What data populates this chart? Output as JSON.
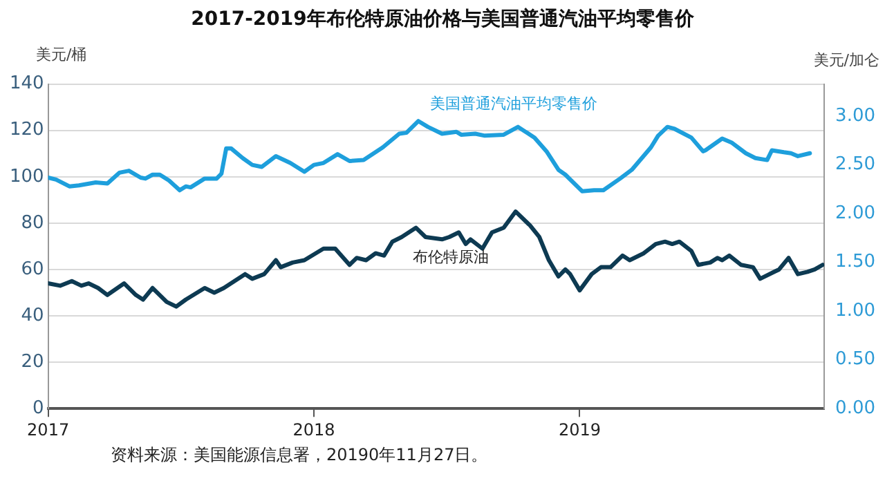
{
  "chart_data": {
    "type": "line",
    "title": "2017-2019年布伦特原油价格与美国普通汽油平均零售价",
    "ylabel": "美元/桶",
    "y2label": "美元/加仑",
    "annotations": [
      "资料来源：美国能源信息署，20190年11月27日。"
    ],
    "xlim": [
      2017,
      2019.92
    ],
    "xticks": [
      2017,
      2018,
      2019
    ],
    "ylim": [
      0,
      140
    ],
    "yticks": [
      0,
      20,
      40,
      60,
      80,
      100,
      120,
      140
    ],
    "y2lim": [
      0,
      3.33
    ],
    "y2ticks": [
      {
        "value": 0,
        "label": "0.00"
      },
      {
        "value": 0.5,
        "label": "0.50"
      },
      {
        "value": 1,
        "label": "1.00"
      },
      {
        "value": 1.5,
        "label": "1.50"
      },
      {
        "value": 2,
        "label": "2.00"
      },
      {
        "value": 2.5,
        "label": "2.50"
      },
      {
        "value": 3,
        "label": "3.00"
      }
    ],
    "grid": "y",
    "legend": false,
    "marker": "none",
    "line_style": "solid",
    "series": [
      {
        "name": "美国普通汽油平均零售价",
        "color": "#1e9fdc",
        "axis": "y2",
        "x": [
          2017.0,
          2017.03,
          2017.08,
          2017.116,
          2017.179,
          2017.223,
          2017.268,
          2017.304,
          2017.348,
          2017.366,
          2017.393,
          2017.42,
          2017.455,
          2017.495,
          2017.518,
          2017.536,
          2017.589,
          2017.634,
          2017.652,
          2017.67,
          2017.688,
          2017.732,
          2017.768,
          2017.804,
          2017.857,
          2017.911,
          2017.964,
          2018.0,
          2018.036,
          2018.089,
          2018.134,
          2018.187,
          2018.259,
          2018.321,
          2018.348,
          2018.393,
          2018.429,
          2018.482,
          2018.536,
          2018.554,
          2018.607,
          2018.643,
          2018.714,
          2018.768,
          2018.83,
          2018.875,
          2018.92,
          2018.946,
          2019.009,
          2019.054,
          2019.089,
          2019.152,
          2019.196,
          2019.268,
          2019.295,
          2019.33,
          2019.357,
          2019.42,
          2019.464,
          2019.473,
          2019.536,
          2019.571,
          2019.625,
          2019.661,
          2019.705,
          2019.723,
          2019.768,
          2019.795,
          2019.821,
          2019.866
        ],
        "values": [
          2.37,
          2.35,
          2.28,
          2.29,
          2.32,
          2.31,
          2.42,
          2.44,
          2.37,
          2.36,
          2.4,
          2.4,
          2.34,
          2.24,
          2.28,
          2.27,
          2.36,
          2.36,
          2.41,
          2.67,
          2.67,
          2.57,
          2.5,
          2.48,
          2.59,
          2.52,
          2.43,
          2.5,
          2.52,
          2.61,
          2.54,
          2.55,
          2.68,
          2.82,
          2.83,
          2.95,
          2.89,
          2.82,
          2.84,
          2.81,
          2.82,
          2.8,
          2.81,
          2.89,
          2.78,
          2.64,
          2.45,
          2.4,
          2.23,
          2.24,
          2.24,
          2.36,
          2.45,
          2.68,
          2.8,
          2.89,
          2.87,
          2.78,
          2.64,
          2.65,
          2.77,
          2.73,
          2.62,
          2.57,
          2.55,
          2.65,
          2.63,
          2.62,
          2.59,
          2.62
        ]
      },
      {
        "name": "布伦特原油",
        "color": "#0d3a52",
        "x": [
          2017.0,
          2017.045,
          2017.089,
          2017.125,
          2017.152,
          2017.188,
          2017.223,
          2017.286,
          2017.33,
          2017.357,
          2017.393,
          2017.446,
          2017.482,
          2017.518,
          2017.589,
          2017.625,
          2017.661,
          2017.741,
          2017.768,
          2017.813,
          2017.857,
          2017.875,
          2017.92,
          2017.964,
          2018.036,
          2018.08,
          2018.134,
          2018.161,
          2018.196,
          2018.232,
          2018.264,
          2018.295,
          2018.33,
          2018.384,
          2018.42,
          2018.482,
          2018.509,
          2018.545,
          2018.571,
          2018.589,
          2018.634,
          2018.67,
          2018.714,
          2018.759,
          2018.813,
          2018.848,
          2018.884,
          2018.92,
          2018.946,
          2018.964,
          2019.0,
          2019.045,
          2019.08,
          2019.116,
          2019.161,
          2019.188,
          2019.241,
          2019.286,
          2019.321,
          2019.348,
          2019.375,
          2019.42,
          2019.446,
          2019.491,
          2019.518,
          2019.536,
          2019.563,
          2019.607,
          2019.652,
          2019.679,
          2019.732,
          2019.75,
          2019.786,
          2019.821,
          2019.857,
          2019.884,
          2019.914
        ],
        "values": [
          54,
          53,
          55,
          53,
          54,
          52,
          49,
          54,
          49,
          47,
          52,
          46,
          44,
          47,
          52,
          50,
          52,
          58,
          56,
          58,
          64,
          61,
          63,
          64,
          69,
          69,
          62,
          65,
          64,
          67,
          66,
          72,
          74,
          78,
          74,
          73,
          74,
          76,
          71,
          73,
          69,
          76,
          78,
          85,
          79,
          74,
          64,
          57,
          60,
          58,
          51,
          58,
          61,
          61,
          66,
          64,
          67,
          71,
          72,
          71,
          72,
          68,
          62,
          63,
          65,
          64,
          66,
          62,
          61,
          56,
          59,
          60,
          65,
          58,
          59,
          60,
          62
        ]
      }
    ]
  }
}
